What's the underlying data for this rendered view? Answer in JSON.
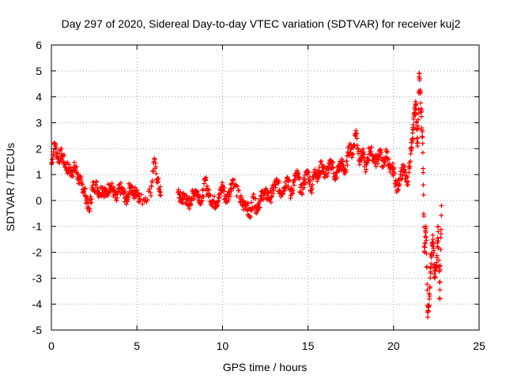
{
  "chart_data": {
    "type": "scatter",
    "title": "Day 297 of 2020, Sidereal Day-to-day VTEC variation (SDTVAR) for receiver kuj2",
    "xlabel": "GPS time / hours",
    "ylabel": "SDTVAR / TECUs",
    "xlim": [
      0,
      25
    ],
    "ylim": [
      -5,
      6
    ],
    "xticks": [
      "0",
      "5",
      "10",
      "15",
      "20",
      "25"
    ],
    "yticks": [
      "-5",
      "-4",
      "-3",
      "-2",
      "-1",
      "0",
      "1",
      "2",
      "3",
      "4",
      "5",
      "6"
    ],
    "grid": true,
    "marker": "+",
    "color": "#ff0000",
    "series": [
      {
        "name": "SDTVAR",
        "x": [
          0.0,
          0.2,
          0.4,
          0.6,
          0.8,
          1.0,
          1.2,
          1.4,
          1.6,
          1.8,
          2.0,
          2.2,
          2.4,
          2.6,
          2.8,
          3.0,
          3.2,
          3.4,
          3.6,
          3.8,
          4.0,
          4.2,
          4.4,
          4.6,
          4.8,
          5.0,
          5.2,
          5.8,
          6.0,
          6.2,
          6.4,
          7.4,
          7.6,
          7.8,
          8.0,
          8.2,
          8.4,
          8.6,
          8.8,
          9.0,
          9.2,
          9.4,
          9.6,
          9.8,
          10.0,
          10.2,
          10.4,
          10.6,
          11.0,
          11.2,
          11.4,
          11.6,
          11.8,
          12.0,
          12.2,
          12.4,
          12.6,
          12.8,
          13.0,
          13.2,
          13.4,
          13.6,
          13.8,
          14.0,
          14.2,
          14.4,
          14.6,
          14.8,
          15.0,
          15.2,
          15.4,
          15.6,
          15.8,
          16.0,
          16.2,
          16.4,
          16.6,
          16.8,
          17.0,
          17.2,
          17.4,
          17.6,
          17.8,
          18.0,
          18.2,
          18.4,
          18.6,
          18.8,
          19.0,
          19.2,
          19.4,
          19.6,
          19.8,
          20.0,
          20.2,
          20.4,
          20.6,
          20.8,
          21.0,
          21.1,
          21.2,
          21.3,
          21.4,
          21.5,
          21.6,
          21.7,
          21.8,
          21.9,
          22.0,
          22.1,
          22.2,
          22.3,
          22.4,
          22.5,
          22.6,
          22.7,
          22.8
        ],
        "y": [
          1.4,
          2.2,
          1.6,
          1.8,
          1.4,
          1.2,
          1.1,
          1.3,
          0.8,
          0.6,
          0.2,
          -0.4,
          0.5,
          0.6,
          0.3,
          0.5,
          0.2,
          0.6,
          0.4,
          0.0,
          0.5,
          0.3,
          0.0,
          0.6,
          0.2,
          0.4,
          0.0,
          0.3,
          1.5,
          0.8,
          0.2,
          0.3,
          0.0,
          0.2,
          -0.2,
          0.1,
          0.4,
          0.2,
          0.0,
          0.8,
          0.2,
          0.0,
          -0.1,
          0.1,
          0.6,
          0.0,
          0.3,
          0.8,
          0.1,
          -0.2,
          -0.1,
          -0.6,
          0.1,
          -0.3,
          0.0,
          0.3,
          0.2,
          0.1,
          0.5,
          0.7,
          0.3,
          0.5,
          0.9,
          0.2,
          0.8,
          1.0,
          0.3,
          0.8,
          1.1,
          0.4,
          1.2,
          0.9,
          1.4,
          1.0,
          1.2,
          1.5,
          0.8,
          1.3,
          1.4,
          1.1,
          2.1,
          1.8,
          2.7,
          1.6,
          1.8,
          1.2,
          2.0,
          1.7,
          1.5,
          1.9,
          1.3,
          1.9,
          1.1,
          1.2,
          0.4,
          1.0,
          1.2,
          0.6,
          1.8,
          2.3,
          3.3,
          3.7,
          2.1,
          4.9,
          3.5,
          2.2,
          -2.0,
          -1.0,
          -4.5,
          -3.6,
          -2.1,
          -1.5,
          -3.0,
          -2.5,
          -1.0,
          -3.8,
          -0.2
        ]
      }
    ]
  }
}
